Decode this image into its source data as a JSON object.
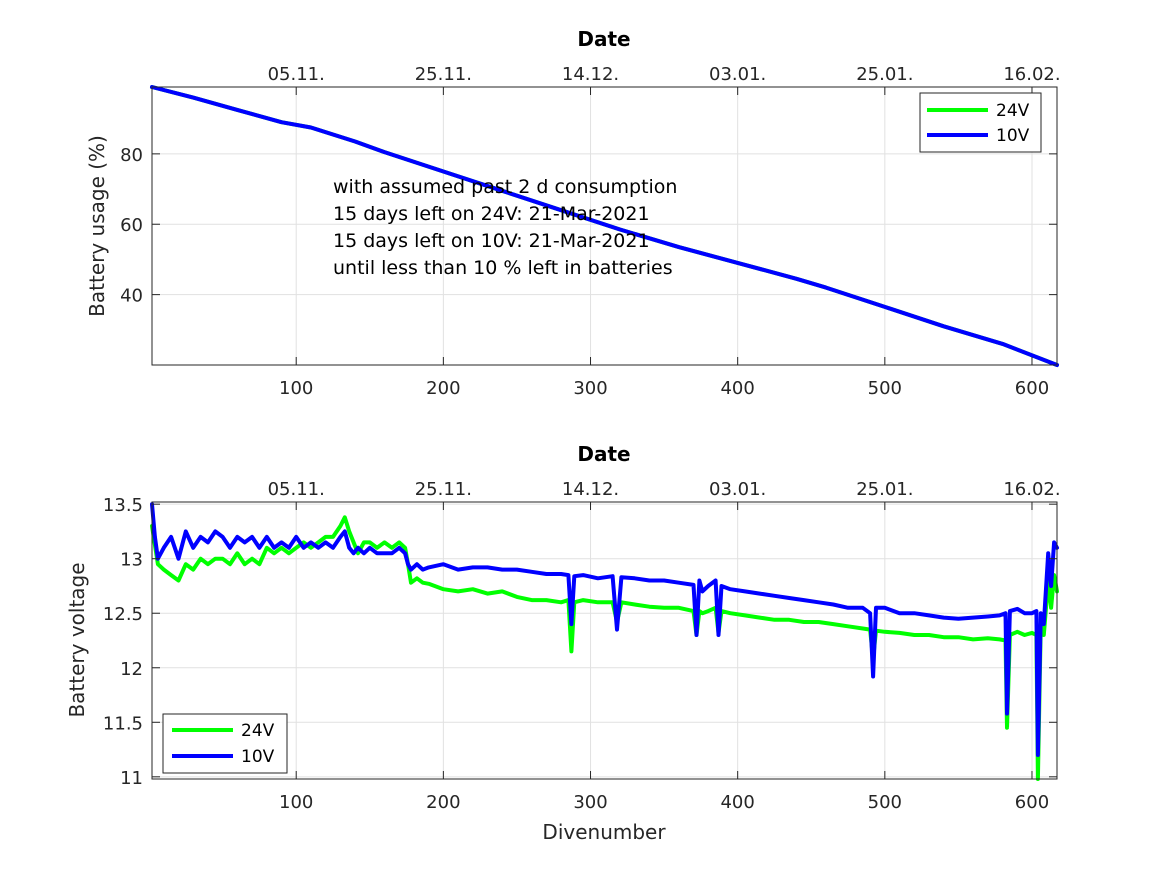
{
  "chart_data": [
    {
      "type": "line",
      "xlabel": "",
      "ylabel": "Battery usage (%)",
      "xlim": [
        2,
        617
      ],
      "ylim": [
        20,
        99
      ],
      "xticks": [
        100,
        200,
        300,
        400,
        500,
        600
      ],
      "yticks": [
        40,
        60,
        80
      ],
      "top_axis": {
        "title": "Date",
        "tick_positions": [
          100,
          200,
          300,
          400,
          500,
          600
        ],
        "tick_labels": [
          "05.11.",
          "25.11.",
          "14.12.",
          "03.01.",
          "25.01.",
          "16.02."
        ]
      },
      "grid": true,
      "legend": {
        "position": "top-right",
        "entries": [
          "24V",
          "10V"
        ]
      },
      "annotation": [
        "with assumed past 2 d consumption",
        "15 days left on 24V: 21-Mar-2021",
        "15 days left on 10V: 21-Mar-2021",
        "until less than 10 % left in batteries"
      ],
      "series": [
        {
          "name": "24V",
          "color": "#00ff00",
          "x": [
            2,
            30,
            60,
            90,
            110,
            125,
            140,
            160,
            200,
            240,
            280,
            320,
            360,
            400,
            440,
            460,
            500,
            540,
            580,
            617
          ],
          "y": [
            99,
            96,
            92.5,
            89,
            87.5,
            85.5,
            83.5,
            80.5,
            75,
            69.5,
            64,
            58.5,
            53.5,
            49,
            44.5,
            42,
            36.5,
            31,
            26,
            20
          ]
        },
        {
          "name": "10V",
          "color": "#0000ff",
          "x": [
            2,
            30,
            60,
            90,
            110,
            125,
            140,
            160,
            200,
            240,
            280,
            320,
            360,
            400,
            440,
            460,
            500,
            540,
            580,
            617
          ],
          "y": [
            99,
            96,
            92.5,
            89,
            87.5,
            85.5,
            83.5,
            80.5,
            75,
            69.5,
            64,
            58.5,
            53.5,
            49,
            44.5,
            42,
            36.5,
            31,
            26,
            20
          ]
        }
      ]
    },
    {
      "type": "line",
      "xlabel": "Divenumber",
      "ylabel": "Battery voltage",
      "xlim": [
        2,
        617
      ],
      "ylim": [
        10.98,
        13.52
      ],
      "xticks": [
        100,
        200,
        300,
        400,
        500,
        600
      ],
      "yticks": [
        11,
        11.5,
        12,
        12.5,
        13,
        13.5
      ],
      "ytick_labels": [
        "11",
        "11.5",
        "12",
        "12.5",
        "13",
        "13.5"
      ],
      "top_axis": {
        "title": "Date",
        "tick_positions": [
          100,
          200,
          300,
          400,
          500,
          600
        ],
        "tick_labels": [
          "05.11.",
          "25.11.",
          "14.12.",
          "03.01.",
          "25.01.",
          "16.02."
        ]
      },
      "grid": true,
      "legend": {
        "position": "bottom-left",
        "entries": [
          "24V",
          "10V"
        ]
      },
      "series": [
        {
          "name": "24V",
          "color": "#00ff00",
          "x": [
            2,
            6,
            10,
            15,
            20,
            25,
            30,
            35,
            40,
            45,
            50,
            55,
            60,
            65,
            70,
            75,
            80,
            85,
            90,
            95,
            100,
            105,
            110,
            115,
            120,
            125,
            130,
            133,
            136,
            139,
            142,
            146,
            150,
            155,
            160,
            165,
            170,
            174,
            176,
            178,
            182,
            186,
            190,
            200,
            210,
            220,
            230,
            240,
            250,
            260,
            270,
            280,
            285,
            287,
            289,
            295,
            305,
            315,
            318,
            321,
            330,
            340,
            350,
            360,
            370,
            372,
            374,
            376,
            380,
            385,
            387,
            389,
            395,
            405,
            415,
            425,
            435,
            445,
            455,
            465,
            475,
            485,
            490,
            492,
            494,
            500,
            510,
            520,
            530,
            540,
            550,
            560,
            570,
            578,
            582,
            583,
            585,
            590,
            595,
            600,
            603,
            604,
            606,
            608,
            611,
            613,
            615,
            617
          ],
          "y": [
            13.3,
            12.95,
            12.9,
            12.85,
            12.8,
            12.95,
            12.9,
            13.0,
            12.95,
            13.0,
            13.0,
            12.95,
            13.05,
            12.95,
            13.0,
            12.95,
            13.1,
            13.05,
            13.1,
            13.05,
            13.1,
            13.15,
            13.1,
            13.15,
            13.2,
            13.2,
            13.3,
            13.38,
            13.25,
            13.15,
            13.05,
            13.15,
            13.15,
            13.1,
            13.15,
            13.1,
            13.15,
            13.1,
            12.95,
            12.78,
            12.82,
            12.78,
            12.77,
            12.72,
            12.7,
            12.72,
            12.68,
            12.7,
            12.65,
            12.62,
            12.62,
            12.6,
            12.62,
            12.15,
            12.6,
            12.62,
            12.6,
            12.6,
            12.42,
            12.6,
            12.58,
            12.56,
            12.55,
            12.55,
            12.52,
            12.3,
            12.52,
            12.5,
            12.52,
            12.55,
            12.32,
            12.52,
            12.5,
            12.48,
            12.46,
            12.44,
            12.44,
            12.42,
            12.42,
            12.4,
            12.38,
            12.36,
            12.35,
            12.08,
            12.34,
            12.33,
            12.32,
            12.3,
            12.3,
            12.28,
            12.28,
            12.26,
            12.27,
            12.26,
            12.25,
            11.45,
            12.3,
            12.33,
            12.3,
            12.32,
            12.3,
            10.98,
            12.4,
            12.3,
            12.8,
            12.55,
            12.85,
            12.7
          ]
        },
        {
          "name": "10V",
          "color": "#0000ff",
          "x": [
            2,
            4,
            6,
            10,
            15,
            20,
            25,
            30,
            35,
            40,
            45,
            50,
            55,
            60,
            65,
            70,
            75,
            80,
            85,
            90,
            95,
            100,
            105,
            110,
            115,
            120,
            125,
            130,
            133,
            136,
            139,
            142,
            146,
            150,
            155,
            160,
            165,
            170,
            174,
            176,
            178,
            182,
            186,
            190,
            200,
            210,
            220,
            230,
            240,
            250,
            260,
            270,
            280,
            285,
            287,
            289,
            295,
            305,
            315,
            318,
            321,
            330,
            340,
            350,
            360,
            370,
            372,
            374,
            376,
            380,
            385,
            387,
            389,
            395,
            405,
            415,
            425,
            435,
            445,
            455,
            465,
            475,
            485,
            490,
            492,
            494,
            500,
            510,
            520,
            530,
            540,
            550,
            560,
            570,
            578,
            582,
            583,
            585,
            590,
            595,
            600,
            603,
            604,
            606,
            608,
            611,
            613,
            615,
            617
          ],
          "y": [
            13.5,
            13.2,
            13.0,
            13.1,
            13.2,
            13.0,
            13.25,
            13.1,
            13.2,
            13.15,
            13.25,
            13.2,
            13.1,
            13.2,
            13.15,
            13.2,
            13.1,
            13.2,
            13.1,
            13.15,
            13.1,
            13.2,
            13.1,
            13.15,
            13.1,
            13.15,
            13.1,
            13.2,
            13.25,
            13.1,
            13.05,
            13.1,
            13.05,
            13.1,
            13.05,
            13.05,
            13.05,
            13.1,
            13.05,
            12.95,
            12.9,
            12.95,
            12.9,
            12.92,
            12.95,
            12.9,
            12.92,
            12.92,
            12.9,
            12.9,
            12.88,
            12.86,
            12.86,
            12.85,
            12.4,
            12.84,
            12.85,
            12.82,
            12.84,
            12.35,
            12.83,
            12.82,
            12.8,
            12.8,
            12.78,
            12.76,
            12.3,
            12.8,
            12.7,
            12.75,
            12.8,
            12.3,
            12.75,
            12.72,
            12.7,
            12.68,
            12.66,
            12.64,
            12.62,
            12.6,
            12.58,
            12.55,
            12.55,
            12.5,
            11.92,
            12.55,
            12.55,
            12.5,
            12.5,
            12.48,
            12.46,
            12.45,
            12.46,
            12.47,
            12.48,
            12.5,
            11.58,
            12.52,
            12.54,
            12.5,
            12.5,
            12.52,
            11.2,
            12.5,
            12.4,
            13.05,
            12.75,
            13.15,
            13.1
          ]
        }
      ]
    }
  ]
}
